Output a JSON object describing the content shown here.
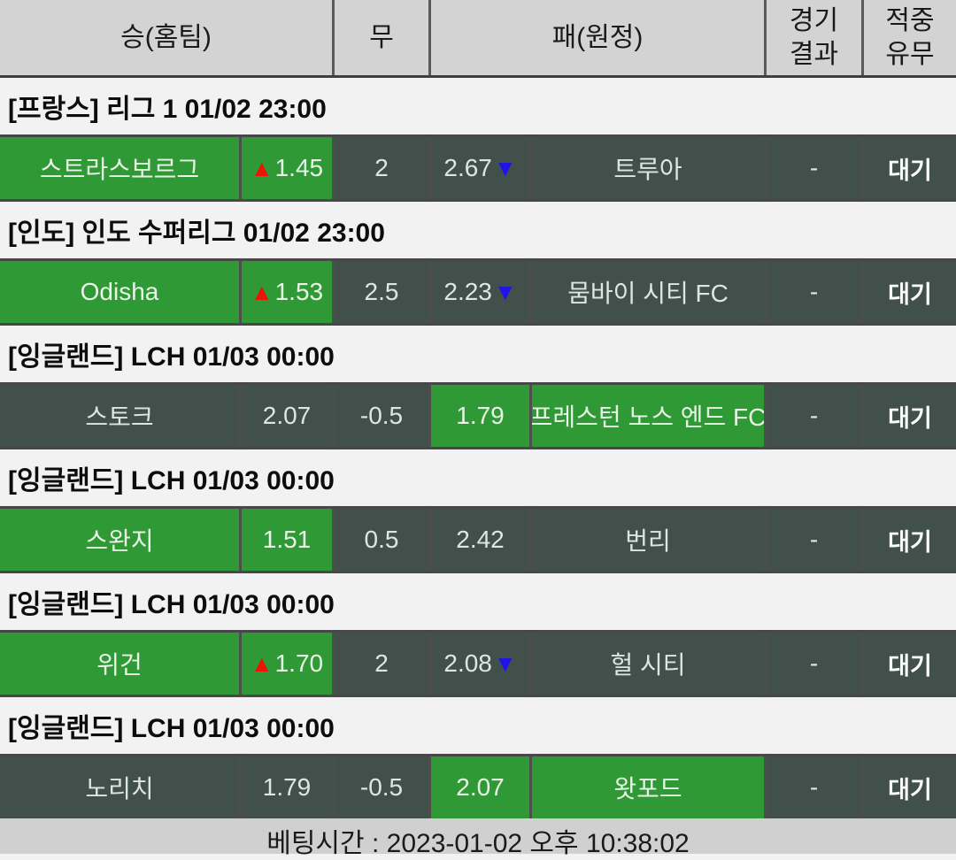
{
  "header": {
    "win": "승(홈팀)",
    "draw": "무",
    "lose": "패(원정)",
    "result_line1": "경기",
    "result_line2": "결과",
    "hit_line1": "적중",
    "hit_line2": "유무"
  },
  "icons": {
    "up_triangle": "▲",
    "down_triangle": "▼"
  },
  "colors": {
    "pick_green": "#2f9a35",
    "cell_dark": "#42504c",
    "header_gray": "#d3d3d3",
    "up_red": "#ea1408",
    "down_blue": "#2013ea"
  },
  "matches": [
    {
      "league": "[프랑스] 리그 1 01/02 23:00",
      "home_team": "스트라스보르그",
      "home_odds": "1.45",
      "home_trend": "up",
      "draw_odds": "2",
      "away_odds": "2.67",
      "away_trend": "down",
      "away_team": "트루아",
      "result": "-",
      "status": "대기",
      "pick": "home"
    },
    {
      "league": "[인도] 인도 수퍼리그 01/02 23:00",
      "home_team": "Odisha",
      "home_odds": "1.53",
      "home_trend": "up",
      "draw_odds": "2.5",
      "away_odds": "2.23",
      "away_trend": "down",
      "away_team": "뭄바이 시티 FC",
      "result": "-",
      "status": "대기",
      "pick": "home"
    },
    {
      "league": "[잉글랜드] LCH 01/03 00:00",
      "home_team": "스토크",
      "home_odds": "2.07",
      "home_trend": "none",
      "draw_odds": "-0.5",
      "away_odds": "1.79",
      "away_trend": "none",
      "away_team": "프레스턴 노스 엔드 FC",
      "result": "-",
      "status": "대기",
      "pick": "away"
    },
    {
      "league": "[잉글랜드] LCH 01/03 00:00",
      "home_team": "스완지",
      "home_odds": "1.51",
      "home_trend": "none",
      "draw_odds": "0.5",
      "away_odds": "2.42",
      "away_trend": "none",
      "away_team": "번리",
      "result": "-",
      "status": "대기",
      "pick": "home"
    },
    {
      "league": "[잉글랜드] LCH 01/03 00:00",
      "home_team": "위건",
      "home_odds": "1.70",
      "home_trend": "up",
      "draw_odds": "2",
      "away_odds": "2.08",
      "away_trend": "down",
      "away_team": "헐 시티",
      "result": "-",
      "status": "대기",
      "pick": "home"
    },
    {
      "league": "[잉글랜드] LCH 01/03 00:00",
      "home_team": "노리치",
      "home_odds": "1.79",
      "home_trend": "none",
      "draw_odds": "-0.5",
      "away_odds": "2.07",
      "away_trend": "none",
      "away_team": "왓포드",
      "result": "-",
      "status": "대기",
      "pick": "away"
    }
  ],
  "footer": {
    "betting_time": "베팅시간 : 2023-01-02 오후 10:38:02"
  }
}
